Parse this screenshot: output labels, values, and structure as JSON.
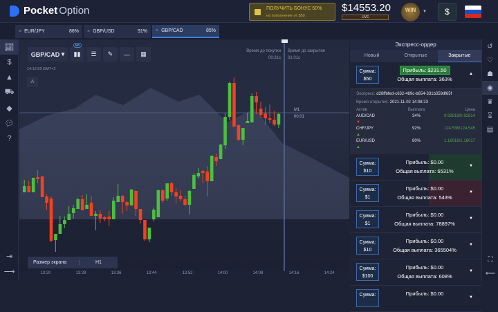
{
  "header": {
    "logo_bold": "Pocket",
    "logo_light": "Option",
    "bonus_title": "ПОЛУЧИТЬ БОНУС 50%",
    "bonus_sub": "на пополнение от $50",
    "balance": "$14553.20",
    "account_type": "LIVE",
    "level_badge": "WIN",
    "level_sub": "МАСТЕР",
    "currency_button": "$"
  },
  "tabs": [
    {
      "pair": "EUR/JPY",
      "payout": "86%"
    },
    {
      "pair": "GBP/USD",
      "payout": "91%"
    },
    {
      "pair": "GBP/CAD",
      "payout": "85%",
      "active": true
    }
  ],
  "chart": {
    "pair": "GBP/CAD",
    "timeframe_badge": "M1",
    "clock": "14:12:59 GMT+2",
    "auto_button": "A",
    "time_to_buy_label": "Время до покупки",
    "time_to_buy": "00:31c",
    "time_to_close_label": "Время до закрытия",
    "time_to_close": "01:01c",
    "marker_label": "M1",
    "marker_time": "00:01",
    "screen_size_label": "Размер экрана",
    "screen_size_value": "H1",
    "x_ticks": [
      "13:20",
      "13:28",
      "13:36",
      "13:44",
      "13:52",
      "14:00",
      "14:08",
      "14:16",
      "14:24"
    ],
    "colors": {
      "up": "#4cbf3f",
      "down": "#f4411e"
    },
    "candles": [
      [
        122,
        131,
        140,
        122
      ],
      [
        131,
        122,
        138,
        122
      ],
      [
        122,
        143,
        143,
        122
      ],
      [
        144,
        141,
        154,
        135
      ],
      [
        145,
        115,
        145,
        115
      ],
      [
        116,
        107,
        119,
        97
      ],
      [
        113,
        52,
        116,
        50
      ],
      [
        53,
        62,
        62,
        36
      ],
      [
        62,
        76,
        88,
        62
      ],
      [
        76,
        82,
        87,
        70
      ],
      [
        82,
        91,
        102,
        82
      ],
      [
        92,
        99,
        104,
        84
      ],
      [
        98,
        112,
        114,
        98
      ],
      [
        112,
        96,
        118,
        96
      ],
      [
        98,
        104,
        119,
        98
      ],
      [
        107,
        88,
        117,
        88
      ],
      [
        88,
        91,
        95,
        67
      ],
      [
        91,
        84,
        96,
        78
      ],
      [
        86,
        83,
        88,
        80
      ],
      [
        87,
        83,
        95,
        73
      ],
      [
        83,
        110,
        115,
        83
      ],
      [
        108,
        117,
        134,
        108
      ],
      [
        117,
        108,
        118,
        91
      ],
      [
        108,
        103,
        110,
        95
      ],
      [
        103,
        126,
        127,
        103
      ],
      [
        124,
        98,
        125,
        88
      ],
      [
        98,
        82,
        98,
        77
      ],
      [
        82,
        54,
        82,
        52
      ],
      [
        54,
        71,
        71,
        50
      ],
      [
        83,
        97,
        100,
        80
      ],
      [
        86,
        125,
        126,
        86
      ],
      [
        125,
        110,
        126,
        107
      ],
      [
        113,
        135,
        135,
        110
      ],
      [
        135,
        122,
        137,
        117
      ],
      [
        122,
        116,
        128,
        106
      ],
      [
        117,
        112,
        125,
        109
      ],
      [
        112,
        104,
        117,
        102
      ],
      [
        104,
        124,
        125,
        90
      ],
      [
        127,
        147,
        150,
        127
      ],
      [
        145,
        150,
        157,
        142
      ],
      [
        153,
        150,
        155,
        135
      ],
      [
        152,
        138,
        160,
        116
      ],
      [
        138,
        175,
        175,
        138
      ],
      [
        173,
        167,
        178,
        160
      ],
      [
        170,
        191,
        192,
        170
      ],
      [
        190,
        231,
        236,
        185
      ],
      [
        231,
        280,
        282,
        227
      ],
      [
        280,
        217,
        288,
        217
      ],
      [
        219,
        198,
        220,
        196
      ],
      [
        198,
        215,
        215,
        190
      ],
      [
        222,
        225,
        237,
        222
      ],
      [
        223,
        261,
        265,
        223
      ],
      [
        261,
        252,
        267,
        235
      ],
      [
        243,
        234,
        253,
        230
      ],
      [
        236,
        229,
        245,
        220
      ],
      [
        229,
        227,
        249,
        222
      ],
      [
        227,
        220,
        240,
        218
      ],
      [
        220,
        235,
        237,
        215
      ]
    ]
  },
  "express_order": {
    "title": "Экспресс-ордер",
    "tabs": [
      "Новый",
      "Открытые",
      "Закрытые"
    ],
    "active_tab": "Закрытые",
    "orders": [
      {
        "sum_label": "Сумма:",
        "sum": "$50",
        "profit": "Прибыль: $231.50",
        "payout": "Общая выплата: 363%",
        "expanded": true
      },
      {
        "sum_label": "Сумма:",
        "sum": "$10",
        "profit": "Прибыль: $0.00",
        "payout": "Общая выплата: 6531%"
      },
      {
        "sum_label": "Сумма:",
        "sum": "$1",
        "profit": "Прибыль: $0.00",
        "payout": "Общая выплата: 543%"
      },
      {
        "sum_label": "Сумма:",
        "sum": "$1",
        "profit": "Прибыль: $0.00",
        "payout": "Общая выплата: 78897%"
      },
      {
        "sum_label": "Сумма:",
        "sum": "$10",
        "profit": "Прибыль: $0.00",
        "payout": "Общая выплата: 365504%"
      },
      {
        "sum_label": "Сумма:",
        "sum": "$100",
        "profit": "Прибыль: $0.00",
        "payout": "Общая выплата: 608%"
      },
      {
        "sum_label": "Сумма:",
        "sum": "",
        "profit": "Прибыль: $0.00",
        "payout": ""
      }
    ],
    "details": {
      "express_label": "Экспресс:",
      "express_id": "d28ffbfed-c632-489c-b654-331b359df65f",
      "open_time_label": "Время открытия:",
      "open_time": "2021-11-02 14:08:23",
      "headers": [
        "Актив",
        "Выплата",
        "Цена"
      ],
      "rows": [
        {
          "asset": "AUD/CAD",
          "dir": "down",
          "payout": "34%",
          "price": "0.92819/0.92814"
        },
        {
          "asset": "CHF/JPY",
          "dir": "up",
          "payout": "92%",
          "price": "124.536/124.545"
        },
        {
          "asset": "EUR/USD",
          "dir": "up",
          "payout": "80%",
          "price": "1.16016/1.16017"
        }
      ]
    }
  },
  "sidebar_icons": [
    "chart-icon",
    "dollar-icon",
    "user-icon",
    "cart-icon",
    "diamond-icon",
    "chat-icon",
    "help-icon"
  ],
  "right_icons": [
    "history-icon",
    "heartbeat-icon",
    "group-icon",
    "disc-icon",
    "trophy-icon",
    "hourglass-icon",
    "calendar-icon"
  ]
}
